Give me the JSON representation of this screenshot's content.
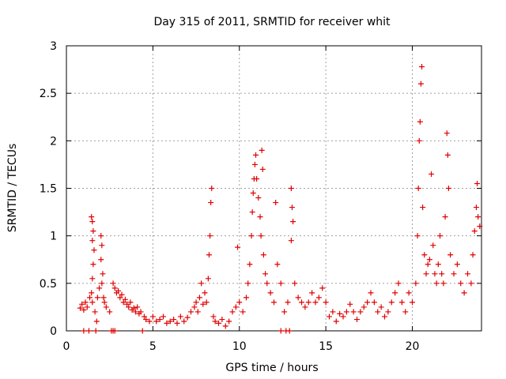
{
  "chart_data": {
    "type": "scatter",
    "title": "Day 315 of 2011, SRMTID for receiver whit",
    "xlabel": "GPS time / hours",
    "ylabel": "SRMTID / TECUs",
    "xlim": [
      0,
      24
    ],
    "ylim": [
      0,
      3
    ],
    "xticks": [
      "0",
      "5",
      "10",
      "15",
      "20"
    ],
    "yticks": [
      "0",
      "0.5",
      "1",
      "1.5",
      "2",
      "2.5",
      "3"
    ],
    "xtick_values": [
      0,
      5,
      10,
      15,
      20
    ],
    "ytick_values": [
      0,
      0.5,
      1,
      1.5,
      2,
      2.5,
      3
    ],
    "grid": true,
    "marker": "+",
    "color": "#e00000",
    "series": [
      {
        "name": "SRMTID",
        "points": [
          [
            0.8,
            0.24
          ],
          [
            0.9,
            0.28
          ],
          [
            1.0,
            0.22
          ],
          [
            1.1,
            0.3
          ],
          [
            1.2,
            0.25
          ],
          [
            1.0,
            0.0
          ],
          [
            1.3,
            0.0
          ],
          [
            1.45,
            1.2
          ],
          [
            1.5,
            1.15
          ],
          [
            1.55,
            1.05
          ],
          [
            1.5,
            0.95
          ],
          [
            1.6,
            0.85
          ],
          [
            1.55,
            0.7
          ],
          [
            1.5,
            0.55
          ],
          [
            1.45,
            0.4
          ],
          [
            1.5,
            0.3
          ],
          [
            1.35,
            0.35
          ],
          [
            1.65,
            0.2
          ],
          [
            1.7,
            0.0
          ],
          [
            1.75,
            0.1
          ],
          [
            1.8,
            0.35
          ],
          [
            1.9,
            0.45
          ],
          [
            2.0,
            1.0
          ],
          [
            2.05,
            0.9
          ],
          [
            2.0,
            0.75
          ],
          [
            2.1,
            0.6
          ],
          [
            2.05,
            0.5
          ],
          [
            2.15,
            0.35
          ],
          [
            2.2,
            0.3
          ],
          [
            2.3,
            0.25
          ],
          [
            2.5,
            0.2
          ],
          [
            2.6,
            0.0
          ],
          [
            2.8,
            0.0
          ],
          [
            2.7,
            0.5
          ],
          [
            2.8,
            0.45
          ],
          [
            2.9,
            0.4
          ],
          [
            3.0,
            0.42
          ],
          [
            3.1,
            0.35
          ],
          [
            3.2,
            0.38
          ],
          [
            3.3,
            0.3
          ],
          [
            3.4,
            0.33
          ],
          [
            3.5,
            0.28
          ],
          [
            3.6,
            0.25
          ],
          [
            3.7,
            0.3
          ],
          [
            3.8,
            0.22
          ],
          [
            3.9,
            0.24
          ],
          [
            4.0,
            0.2
          ],
          [
            4.1,
            0.25
          ],
          [
            4.2,
            0.18
          ],
          [
            4.3,
            0.2
          ],
          [
            4.4,
            0.0
          ],
          [
            4.5,
            0.15
          ],
          [
            4.6,
            0.12
          ],
          [
            4.8,
            0.1
          ],
          [
            5.0,
            0.15
          ],
          [
            5.2,
            0.1
          ],
          [
            5.4,
            0.12
          ],
          [
            5.6,
            0.15
          ],
          [
            5.8,
            0.08
          ],
          [
            6.0,
            0.1
          ],
          [
            6.2,
            0.12
          ],
          [
            6.4,
            0.08
          ],
          [
            6.6,
            0.15
          ],
          [
            6.8,
            0.1
          ],
          [
            7.0,
            0.14
          ],
          [
            7.2,
            0.2
          ],
          [
            7.4,
            0.25
          ],
          [
            7.5,
            0.3
          ],
          [
            7.6,
            0.2
          ],
          [
            7.7,
            0.35
          ],
          [
            7.8,
            0.5
          ],
          [
            7.9,
            0.28
          ],
          [
            8.0,
            0.4
          ],
          [
            8.1,
            0.3
          ],
          [
            8.2,
            0.55
          ],
          [
            8.25,
            0.8
          ],
          [
            8.3,
            1.0
          ],
          [
            8.35,
            1.35
          ],
          [
            8.4,
            1.5
          ],
          [
            8.5,
            0.15
          ],
          [
            8.6,
            0.1
          ],
          [
            8.8,
            0.08
          ],
          [
            9.0,
            0.12
          ],
          [
            9.2,
            0.05
          ],
          [
            9.4,
            0.1
          ],
          [
            9.6,
            0.2
          ],
          [
            9.8,
            0.25
          ],
          [
            9.9,
            0.88
          ],
          [
            10.0,
            0.3
          ],
          [
            10.2,
            0.2
          ],
          [
            10.4,
            0.35
          ],
          [
            10.5,
            0.5
          ],
          [
            10.6,
            0.7
          ],
          [
            10.7,
            1.0
          ],
          [
            10.75,
            1.25
          ],
          [
            10.8,
            1.45
          ],
          [
            10.85,
            1.6
          ],
          [
            10.9,
            1.75
          ],
          [
            10.95,
            1.85
          ],
          [
            11.0,
            1.6
          ],
          [
            11.1,
            1.4
          ],
          [
            11.2,
            1.2
          ],
          [
            11.25,
            1.0
          ],
          [
            11.3,
            1.9
          ],
          [
            11.35,
            1.7
          ],
          [
            11.4,
            0.8
          ],
          [
            11.5,
            0.6
          ],
          [
            11.6,
            0.5
          ],
          [
            11.8,
            0.4
          ],
          [
            12.0,
            0.3
          ],
          [
            12.1,
            1.35
          ],
          [
            12.2,
            0.7
          ],
          [
            12.4,
            0.5
          ],
          [
            12.6,
            0.2
          ],
          [
            12.8,
            0.3
          ],
          [
            13.0,
            1.5
          ],
          [
            13.05,
            1.3
          ],
          [
            13.1,
            1.15
          ],
          [
            13.0,
            0.95
          ],
          [
            13.2,
            0.5
          ],
          [
            13.4,
            0.35
          ],
          [
            13.6,
            0.3
          ],
          [
            13.8,
            0.25
          ],
          [
            14.0,
            0.3
          ],
          [
            14.2,
            0.4
          ],
          [
            14.4,
            0.3
          ],
          [
            14.6,
            0.35
          ],
          [
            14.8,
            0.45
          ],
          [
            15.0,
            0.3
          ],
          [
            15.2,
            0.15
          ],
          [
            15.4,
            0.2
          ],
          [
            15.6,
            0.1
          ],
          [
            15.8,
            0.18
          ],
          [
            16.0,
            0.15
          ],
          [
            16.2,
            0.2
          ],
          [
            16.4,
            0.28
          ],
          [
            16.6,
            0.2
          ],
          [
            16.8,
            0.12
          ],
          [
            17.0,
            0.2
          ],
          [
            17.2,
            0.25
          ],
          [
            17.4,
            0.3
          ],
          [
            17.6,
            0.4
          ],
          [
            17.8,
            0.3
          ],
          [
            18.0,
            0.2
          ],
          [
            18.2,
            0.25
          ],
          [
            18.4,
            0.15
          ],
          [
            18.6,
            0.2
          ],
          [
            18.8,
            0.3
          ],
          [
            19.0,
            0.4
          ],
          [
            19.2,
            0.5
          ],
          [
            19.4,
            0.3
          ],
          [
            19.6,
            0.2
          ],
          [
            19.8,
            0.4
          ],
          [
            20.0,
            0.3
          ],
          [
            20.2,
            0.5
          ],
          [
            20.3,
            1.0
          ],
          [
            20.35,
            1.5
          ],
          [
            20.4,
            2.0
          ],
          [
            20.45,
            2.2
          ],
          [
            20.5,
            2.6
          ],
          [
            20.55,
            2.78
          ],
          [
            20.6,
            1.3
          ],
          [
            20.7,
            0.8
          ],
          [
            20.8,
            0.6
          ],
          [
            20.9,
            0.7
          ],
          [
            21.0,
            0.75
          ],
          [
            21.1,
            1.65
          ],
          [
            21.2,
            0.9
          ],
          [
            21.3,
            0.6
          ],
          [
            21.4,
            0.5
          ],
          [
            21.5,
            0.7
          ],
          [
            21.6,
            1.0
          ],
          [
            21.7,
            0.6
          ],
          [
            21.8,
            0.5
          ],
          [
            21.9,
            1.2
          ],
          [
            22.0,
            2.08
          ],
          [
            22.05,
            1.85
          ],
          [
            22.1,
            1.5
          ],
          [
            22.2,
            0.8
          ],
          [
            22.4,
            0.6
          ],
          [
            22.6,
            0.7
          ],
          [
            22.8,
            0.5
          ],
          [
            23.0,
            0.4
          ],
          [
            23.2,
            0.6
          ],
          [
            23.4,
            0.5
          ],
          [
            23.5,
            0.8
          ],
          [
            23.6,
            1.05
          ],
          [
            23.7,
            1.3
          ],
          [
            23.75,
            1.55
          ],
          [
            23.8,
            1.2
          ],
          [
            23.9,
            1.1
          ],
          [
            12.4,
            0.0
          ],
          [
            12.7,
            0.0
          ],
          [
            12.9,
            0.0
          ],
          [
            2.7,
            0.0
          ]
        ]
      }
    ]
  }
}
